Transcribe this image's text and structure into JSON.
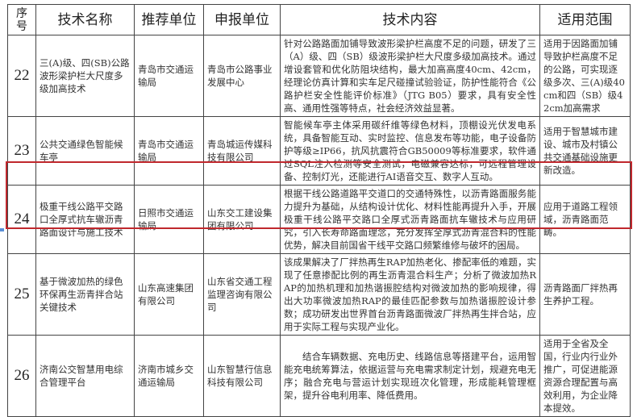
{
  "headers": [
    "序号",
    "技术名称",
    "推荐单位",
    "申报单位",
    "技术内容",
    "适用范围"
  ],
  "rows": [
    {
      "no": "22",
      "name": "三(A)级、四(SB)公路波形梁护栏大尺度多级加高技术",
      "recommender": "青岛市交通运输局",
      "applicant": "青岛市公路事业发展中心",
      "content": "针对公路路面加铺导致波形梁护栏高度不足的问题，研发了三（A）级、四（SB）级波形梁护栏大尺度多级加高技术。通过增设套管和优化防阻块结构，最大加高高度40cm、42cm，经理论仿真计算和实车足尺碰撞试验验证，防护性能符合《公路护栏安全性能评价标准》（JTG B05）要求，具有安全性高、通用性强等特点，社会经济效益显著。",
      "scope": "适用于因路面加铺导致护栏高度不足的公路，可实现逐级多次、三(A)级40cm和四（SB）级42cm加高需求"
    },
    {
      "no": "23",
      "name": "公共交通绿色智能候车亭",
      "recommender": "青岛市交通运输局",
      "applicant": "青岛城运传媒科技有限公司",
      "content": "智能候车亭主体采用碳纤维等绿色材料，顶棚设光伏发电系统，具备智能互动、实时监控、信息发布等功能，电子设备防护等级≥IP66，抗风抗震符合GB50009等标准要求，软件通过SQL注入检测等安全测试，电磁兼容达标，可远程管理设备、控制灯光，还能进行AI语音交互、数字人互动。",
      "scope": "适用于智慧城市建设、城市及村镇公共交通基础设施更新改造。"
    },
    {
      "no": "24",
      "name": "极重干线公路平交路口全厚式抗车辙沥青路面设计与施工技术",
      "recommender": "日照市交通运输局",
      "applicant": "山东交工建设集团有限公司",
      "content": "根据干线公路道路平交道口的交通特殊性，以沥青路面服务能力提升为基础，从结构设计优化、材料性能再提升入手，开展极重干线公路平交路口全厚式沥青路面抗车辙技术与应用研究，引入长寿命路面理念，充分发挥全厚式沥青混合料的性能优势，解决目前国省干线平交路口频繁维修与破坏的困局。",
      "scope": "应用于道路工程领域，沥青路面范畴。"
    },
    {
      "no": "25",
      "name": "基于微波加热的绿色环保再生沥青拌合站关键技术",
      "recommender": "山东高速集团有限公司",
      "applicant": "山东省交通工程监理咨询有限公司",
      "content": "该成果解决了厂拌热再生RAP加热老化、掺配率低的难题，实现了任意掺配比例的再生沥青混合料生产；分析了微波加热RAP的加热机理和加热谐振腔结构对微波加热的影响规律，得出大功率微波加热RAP的最佳匹配参数与加热谐振腔设计参数；成功研发出世界首台沥青路面微波厂拌热再生拌合站，应用于实际工程与实现产业化。",
      "scope": "沥青路面厂拌热再生养护工程。"
    },
    {
      "no": "26",
      "name": "济南公交智慧用电综合管理平台",
      "recommender": "济南市城乡交通运输局",
      "applicant": "山东智慧行信息科技有限公司",
      "content": "结合车辆数据、充电历史、线路信息等搭建平台，运用智能充电统筹算法，依据运营与充电需求制定计划，规避充电无序；融合充电与营运计划实现班次化管理，形成能耗管理框架，提升谷电利用率、降低费用。",
      "scope": "适用于全省及全国，行业内行业外推广，可促进能源资源合理配置与高效利用，为企业降本提效。"
    }
  ],
  "highlight": {
    "row": "24",
    "color": "#c0282d"
  }
}
